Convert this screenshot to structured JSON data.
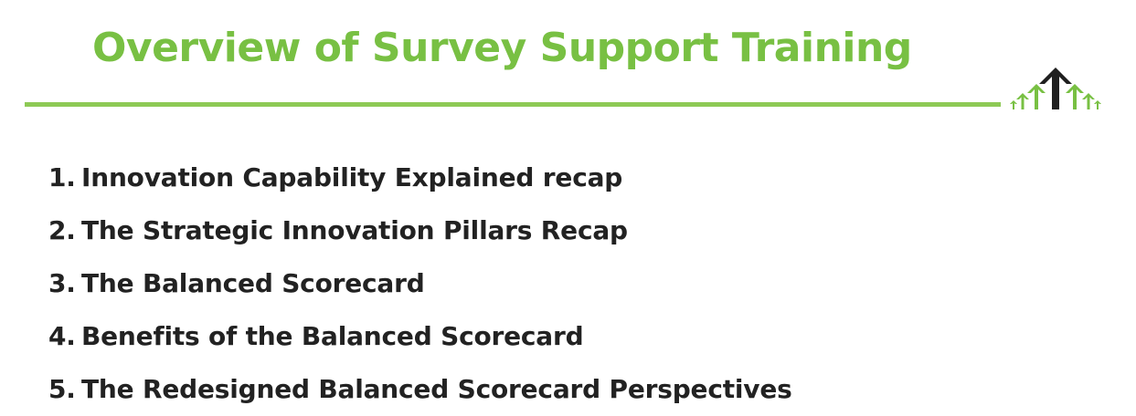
{
  "slide": {
    "title": "Overview of Survey Support Training",
    "accent_color": "#78c043",
    "rule_color": "#8dc955",
    "text_color": "#222222",
    "logo": {
      "icon": "arrows-up-logo-icon",
      "dark_color": "#1f1f1f",
      "green_color": "#78c043"
    }
  },
  "agenda": {
    "items": [
      {
        "number": "1.",
        "text": "Innovation Capability Explained recap"
      },
      {
        "number": "2.",
        "text": "The Strategic Innovation Pillars Recap"
      },
      {
        "number": "3.",
        "text": "The Balanced Scorecard"
      },
      {
        "number": "4.",
        "text": "Benefits of the Balanced Scorecard"
      },
      {
        "number": "5.",
        "text": "The Redesigned Balanced Scorecard Perspectives"
      }
    ]
  }
}
